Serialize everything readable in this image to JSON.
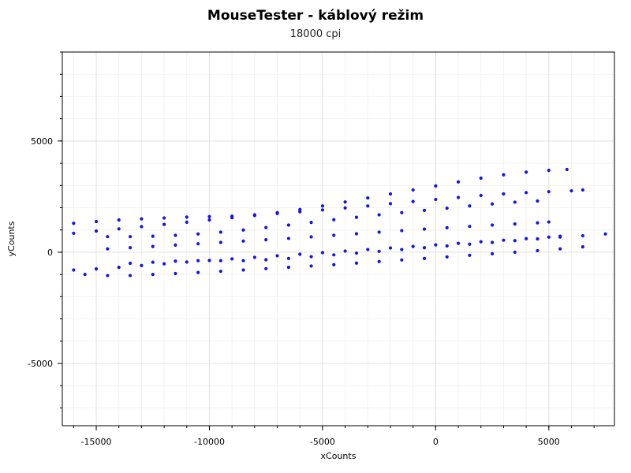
{
  "chart_data": {
    "type": "scatter",
    "title": "MouseTester - káblový režim",
    "subtitle": "18000 cpi",
    "xlabel": "xCounts",
    "ylabel": "yCounts",
    "xlim": [
      -16500,
      7900
    ],
    "ylim": [
      -7800,
      9000
    ],
    "xticks": [
      -15000,
      -10000,
      -5000,
      0,
      5000
    ],
    "xtick_labels": [
      "-15000",
      "-10000",
      "-5000",
      "0",
      "5000"
    ],
    "yticks": [
      -5000,
      0,
      5000
    ],
    "ytick_labels": [
      "-5000",
      "0",
      "5000"
    ],
    "x_minor_step": 1000,
    "y_minor_step": 1000,
    "grid": true,
    "point_color": "#1414e6",
    "series": [
      {
        "points": [
          [
            -16000,
            1300
          ],
          [
            -15000,
            1380
          ],
          [
            -14000,
            1450
          ],
          [
            -13000,
            1500
          ],
          [
            -12000,
            1540
          ],
          [
            -11000,
            1580
          ],
          [
            -10000,
            1600
          ],
          [
            -9000,
            1620
          ],
          [
            -8000,
            1680
          ],
          [
            -7000,
            1780
          ],
          [
            -6000,
            1920
          ],
          [
            -5000,
            2080
          ],
          [
            -4000,
            2260
          ],
          [
            -3000,
            2440
          ],
          [
            -2000,
            2620
          ],
          [
            -1000,
            2800
          ],
          [
            0,
            2980
          ],
          [
            1000,
            3160
          ],
          [
            2000,
            3330
          ],
          [
            3000,
            3480
          ],
          [
            4000,
            3600
          ],
          [
            5000,
            3680
          ],
          [
            5800,
            3720
          ]
        ]
      },
      {
        "points": [
          [
            -16000,
            850
          ],
          [
            -15000,
            950
          ],
          [
            -14000,
            1050
          ],
          [
            -13000,
            1150
          ],
          [
            -12000,
            1250
          ],
          [
            -11000,
            1350
          ],
          [
            -10000,
            1450
          ],
          [
            -9000,
            1550
          ],
          [
            -8000,
            1650
          ],
          [
            -7000,
            1740
          ],
          [
            -6000,
            1820
          ],
          [
            -5000,
            1900
          ],
          [
            -4000,
            1990
          ],
          [
            -3000,
            2080
          ],
          [
            -2000,
            2180
          ],
          [
            -1000,
            2280
          ],
          [
            0,
            2370
          ],
          [
            1000,
            2460
          ],
          [
            2000,
            2550
          ],
          [
            3000,
            2620
          ],
          [
            4000,
            2680
          ],
          [
            5000,
            2720
          ],
          [
            6000,
            2760
          ],
          [
            6500,
            2800
          ]
        ]
      },
      {
        "points": [
          [
            -14500,
            700
          ],
          [
            -13500,
            700
          ],
          [
            -12500,
            720
          ],
          [
            -11500,
            760
          ],
          [
            -10500,
            820
          ],
          [
            -9500,
            900
          ],
          [
            -8500,
            1000
          ],
          [
            -7500,
            1110
          ],
          [
            -6500,
            1220
          ],
          [
            -5500,
            1340
          ],
          [
            -4500,
            1460
          ],
          [
            -3500,
            1570
          ],
          [
            -2500,
            1680
          ],
          [
            -1500,
            1780
          ],
          [
            -500,
            1880
          ],
          [
            500,
            1980
          ],
          [
            1500,
            2080
          ],
          [
            2500,
            2170
          ],
          [
            3500,
            2250
          ],
          [
            4500,
            2300
          ]
        ]
      },
      {
        "points": [
          [
            -14500,
            150
          ],
          [
            -13500,
            200
          ],
          [
            -12500,
            260
          ],
          [
            -11500,
            320
          ],
          [
            -10500,
            380
          ],
          [
            -9500,
            440
          ],
          [
            -8500,
            500
          ],
          [
            -7500,
            560
          ],
          [
            -6500,
            620
          ],
          [
            -5500,
            690
          ],
          [
            -4500,
            760
          ],
          [
            -3500,
            830
          ],
          [
            -2500,
            900
          ],
          [
            -1500,
            970
          ],
          [
            -500,
            1040
          ],
          [
            500,
            1100
          ],
          [
            1500,
            1160
          ],
          [
            2500,
            1220
          ],
          [
            3500,
            1270
          ],
          [
            4500,
            1320
          ],
          [
            5000,
            1360
          ]
        ]
      },
      {
        "points": [
          [
            -13500,
            -500
          ],
          [
            -12500,
            -450
          ],
          [
            -11500,
            -400
          ],
          [
            -10500,
            -380
          ],
          [
            -9500,
            -380
          ],
          [
            -8500,
            -380
          ],
          [
            -7500,
            -340
          ],
          [
            -6500,
            -280
          ],
          [
            -5500,
            -200
          ],
          [
            -4500,
            -120
          ],
          [
            -3500,
            -40
          ],
          [
            -2500,
            40
          ],
          [
            -1500,
            120
          ],
          [
            -500,
            200
          ],
          [
            500,
            280
          ],
          [
            1500,
            360
          ],
          [
            2500,
            440
          ],
          [
            3500,
            520
          ],
          [
            4500,
            600
          ],
          [
            5500,
            680
          ],
          [
            6500,
            740
          ],
          [
            7500,
            820
          ]
        ]
      },
      {
        "points": [
          [
            -16000,
            -800
          ],
          [
            -15000,
            -750
          ],
          [
            -14000,
            -680
          ],
          [
            -13000,
            -600
          ],
          [
            -12000,
            -520
          ],
          [
            -11000,
            -440
          ],
          [
            -10000,
            -370
          ],
          [
            -9000,
            -300
          ],
          [
            -8000,
            -230
          ],
          [
            -7000,
            -160
          ],
          [
            -6000,
            -90
          ],
          [
            -5000,
            -20
          ],
          [
            -4000,
            50
          ],
          [
            -3000,
            120
          ],
          [
            -2000,
            190
          ],
          [
            -1000,
            260
          ],
          [
            0,
            330
          ],
          [
            1000,
            400
          ],
          [
            2000,
            470
          ],
          [
            3000,
            540
          ],
          [
            4000,
            610
          ],
          [
            5000,
            680
          ],
          [
            5500,
            720
          ]
        ]
      },
      {
        "points": [
          [
            -15500,
            -1000
          ],
          [
            -14500,
            -1050
          ],
          [
            -13500,
            -1050
          ],
          [
            -12500,
            -1000
          ],
          [
            -11500,
            -960
          ],
          [
            -10500,
            -910
          ],
          [
            -9500,
            -860
          ],
          [
            -8500,
            -800
          ],
          [
            -7500,
            -740
          ],
          [
            -6500,
            -680
          ],
          [
            -5500,
            -620
          ],
          [
            -4500,
            -560
          ],
          [
            -3500,
            -490
          ],
          [
            -2500,
            -420
          ],
          [
            -1500,
            -350
          ],
          [
            -500,
            -280
          ],
          [
            500,
            -210
          ],
          [
            1500,
            -140
          ],
          [
            2500,
            -70
          ],
          [
            3500,
            0
          ],
          [
            4500,
            70
          ],
          [
            5500,
            150
          ],
          [
            6500,
            240
          ]
        ]
      }
    ]
  }
}
